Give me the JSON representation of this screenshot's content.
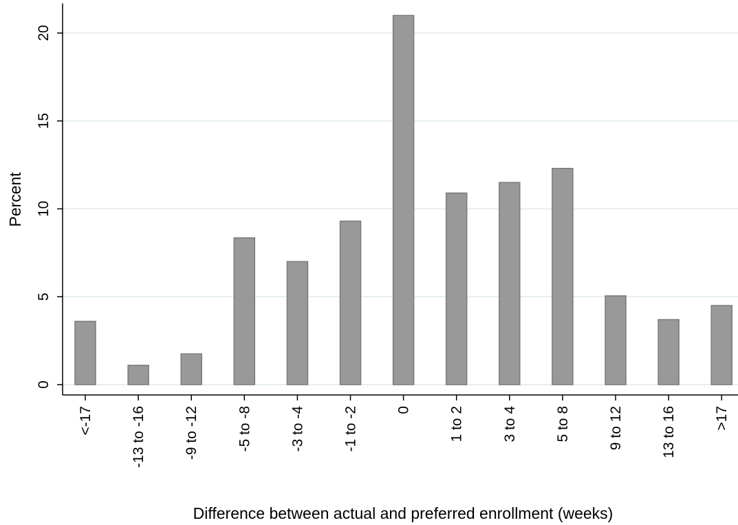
{
  "chart_data": {
    "type": "bar",
    "title": "",
    "xlabel": "Difference between actual and preferred enrollment (weeks)",
    "ylabel": "Percent",
    "ylim": [
      0,
      21.8
    ],
    "yticks": [
      0,
      5,
      10,
      15,
      20
    ],
    "grid": true,
    "categories": [
      "<-17",
      "-13 to -16",
      "-9 to -12",
      "-5 to -8",
      "-3 to -4",
      "-1 to -2",
      "0",
      "1 to 2",
      "3 to 4",
      "5 to 8",
      "9 to 12",
      "13 to 16",
      ">17"
    ],
    "series": [
      {
        "values": [
          3.6,
          1.1,
          1.75,
          8.35,
          7.0,
          9.3,
          21.0,
          10.9,
          11.5,
          12.3,
          5.05,
          3.7,
          4.5
        ]
      }
    ],
    "colors": {
      "bar_fill": "#999999",
      "bar_stroke": "#7a7a7a",
      "grid": "#dde8ee",
      "axis": "#000000"
    }
  }
}
